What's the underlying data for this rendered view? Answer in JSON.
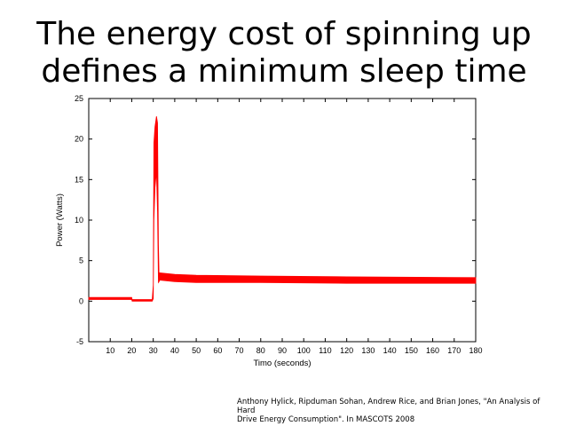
{
  "slide": {
    "title_line1": "The energy cost of spinning up",
    "title_line2": "defines a minimum sleep time",
    "citation_line1": "Anthony Hylick, Ripduman Sohan, Andrew Rice, and Brian Jones, \"An Analysis of Hard",
    "citation_line2": "Drive Energy Consumption\". In MASCOTS 2008"
  },
  "chart_data": {
    "type": "line",
    "title": "",
    "xlabel": "Timo (seconds)",
    "ylabel": "Power (Watts)",
    "xlim": [
      0,
      180
    ],
    "ylim": [
      -5,
      25
    ],
    "xticks": [
      10,
      20,
      30,
      40,
      50,
      60,
      70,
      80,
      90,
      100,
      110,
      120,
      130,
      140,
      150,
      160,
      170,
      180
    ],
    "yticks": [
      -5,
      0,
      5,
      10,
      15,
      20,
      25
    ],
    "grid": false,
    "legend": "none",
    "color": "#ff0000",
    "series": [
      {
        "name": "Power",
        "t": [
          0,
          20,
          20.2,
          29.5,
          30,
          30.3,
          30.8,
          31.5,
          32,
          32.4,
          32.7,
          33,
          40,
          50,
          80,
          120,
          180
        ],
        "low": [
          0.2,
          0.2,
          0.0,
          0.0,
          0.3,
          10,
          14,
          16,
          11,
          2.3,
          2.4,
          2.6,
          2.4,
          2.3,
          2.3,
          2.2,
          2.2
        ],
        "high": [
          0.45,
          0.45,
          0.2,
          0.2,
          2,
          19.5,
          21.5,
          22.8,
          22,
          7,
          3.4,
          3.5,
          3.3,
          3.2,
          3.1,
          3.0,
          2.9
        ]
      }
    ]
  }
}
